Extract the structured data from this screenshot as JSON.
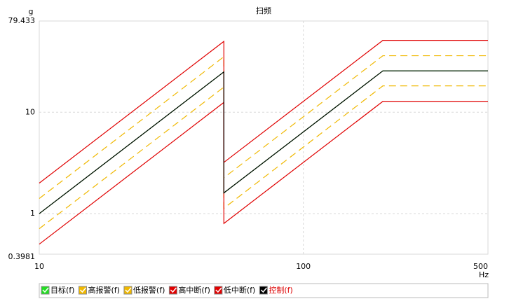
{
  "chart_data": {
    "type": "line",
    "title": "扫频",
    "y_label": "g",
    "x_label": "Hz",
    "log_x": true,
    "log_y": true,
    "grid": true,
    "x": [
      10,
      50,
      50,
      200,
      500
    ],
    "xlim": [
      10,
      500
    ],
    "xticks": [
      10,
      100,
      500
    ],
    "ylim": [
      0.3981,
      79.433
    ],
    "yticks": [
      0.3981,
      1,
      10,
      79.433
    ],
    "series": [
      {
        "name": "目标(f)",
        "color": "#22dd22",
        "dash": false,
        "values": [
          1,
          25,
          1.6,
          25.6,
          25.6
        ]
      },
      {
        "name": "高报警(f)",
        "color": "#f0b800",
        "dash": true,
        "values": [
          1.41,
          35.3,
          2.26,
          36.1,
          36.1
        ]
      },
      {
        "name": "低报警(f)",
        "color": "#f0b800",
        "dash": true,
        "values": [
          0.71,
          17.7,
          1.13,
          18.2,
          18.2
        ]
      },
      {
        "name": "高中断(f)",
        "color": "#e00000",
        "dash": false,
        "values": [
          2,
          50,
          3.2,
          51.2,
          51.2
        ]
      },
      {
        "name": "低中断(f)",
        "color": "#e00000",
        "dash": false,
        "values": [
          0.5,
          12.5,
          0.8,
          12.8,
          12.8
        ]
      },
      {
        "name": "控制(f)",
        "color": "#000000",
        "dash": false,
        "values": [
          1,
          25,
          1.6,
          25.6,
          25.6
        ]
      }
    ]
  }
}
